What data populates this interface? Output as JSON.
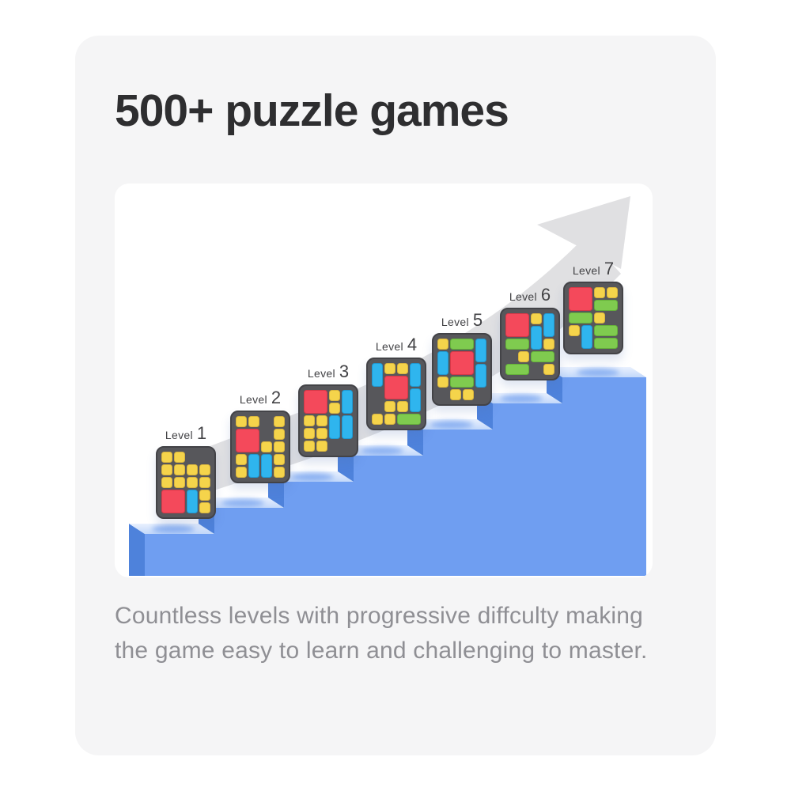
{
  "card": {
    "title": "500+ puzzle games",
    "description": "Countless levels with progressive diffculty making the game easy to learn and challenging to master."
  },
  "illustration": {
    "arrow_icon": "growth-arrow-icon",
    "arrow_color": "#e0e0e2",
    "stairs": {
      "front": "#6f9ef1",
      "side": "#4e82db",
      "top": "#d3e3fb",
      "top_back": "#e9f1fe",
      "top_shadow": "#7aa5ef"
    },
    "board_style": {
      "background": "#57575b",
      "border": "#434347"
    },
    "piece_colors": {
      "Y": {
        "fill": "#f5d44b",
        "edge": "#d9b53e"
      },
      "R": {
        "fill": "#f4495b",
        "edge": "#d63848"
      },
      "B": {
        "fill": "#2fb5ee",
        "edge": "#1f99d3"
      },
      "G": {
        "fill": "#7fcb4f",
        "edge": "#65b13a"
      }
    },
    "levels": [
      {
        "label": "Level",
        "number": "1",
        "pieces": [
          [
            0,
            0,
            1,
            1,
            "Y"
          ],
          [
            0,
            1,
            1,
            1,
            "Y"
          ],
          [
            1,
            0,
            1,
            1,
            "Y"
          ],
          [
            1,
            1,
            1,
            1,
            "Y"
          ],
          [
            1,
            2,
            1,
            1,
            "Y"
          ],
          [
            1,
            3,
            1,
            1,
            "Y"
          ],
          [
            2,
            0,
            1,
            1,
            "Y"
          ],
          [
            2,
            1,
            1,
            1,
            "Y"
          ],
          [
            2,
            2,
            1,
            1,
            "Y"
          ],
          [
            2,
            3,
            1,
            1,
            "Y"
          ],
          [
            3,
            0,
            2,
            2,
            "R"
          ],
          [
            3,
            2,
            2,
            1,
            "B"
          ],
          [
            3,
            3,
            1,
            1,
            "Y"
          ],
          [
            4,
            3,
            1,
            1,
            "Y"
          ]
        ]
      },
      {
        "label": "Level",
        "number": "2",
        "pieces": [
          [
            0,
            0,
            1,
            1,
            "Y"
          ],
          [
            0,
            1,
            1,
            1,
            "Y"
          ],
          [
            0,
            3,
            1,
            1,
            "Y"
          ],
          [
            1,
            0,
            2,
            2,
            "R"
          ],
          [
            1,
            3,
            1,
            1,
            "Y"
          ],
          [
            2,
            2,
            1,
            1,
            "Y"
          ],
          [
            2,
            3,
            1,
            1,
            "Y"
          ],
          [
            3,
            0,
            1,
            1,
            "Y"
          ],
          [
            3,
            1,
            2,
            1,
            "B"
          ],
          [
            3,
            2,
            2,
            1,
            "B"
          ],
          [
            3,
            3,
            1,
            1,
            "Y"
          ],
          [
            4,
            0,
            1,
            1,
            "Y"
          ],
          [
            4,
            3,
            1,
            1,
            "Y"
          ]
        ]
      },
      {
        "label": "Level",
        "number": "3",
        "pieces": [
          [
            0,
            0,
            2,
            2,
            "R"
          ],
          [
            0,
            2,
            1,
            1,
            "Y"
          ],
          [
            0,
            3,
            2,
            1,
            "B"
          ],
          [
            1,
            2,
            1,
            1,
            "Y"
          ],
          [
            2,
            0,
            1,
            1,
            "Y"
          ],
          [
            2,
            1,
            1,
            1,
            "Y"
          ],
          [
            2,
            2,
            2,
            1,
            "B"
          ],
          [
            2,
            3,
            2,
            1,
            "B"
          ],
          [
            3,
            0,
            1,
            1,
            "Y"
          ],
          [
            3,
            1,
            1,
            1,
            "Y"
          ],
          [
            4,
            0,
            1,
            1,
            "Y"
          ],
          [
            4,
            1,
            1,
            1,
            "Y"
          ]
        ]
      },
      {
        "label": "Level",
        "number": "4",
        "pieces": [
          [
            0,
            0,
            2,
            1,
            "B"
          ],
          [
            0,
            1,
            1,
            1,
            "Y"
          ],
          [
            0,
            2,
            1,
            1,
            "Y"
          ],
          [
            0,
            3,
            2,
            1,
            "B"
          ],
          [
            1,
            1,
            2,
            2,
            "R"
          ],
          [
            2,
            3,
            2,
            1,
            "B"
          ],
          [
            3,
            1,
            1,
            1,
            "Y"
          ],
          [
            3,
            2,
            1,
            1,
            "Y"
          ],
          [
            4,
            0,
            1,
            1,
            "Y"
          ],
          [
            4,
            1,
            1,
            1,
            "Y"
          ],
          [
            4,
            2,
            1,
            2,
            "G"
          ]
        ]
      },
      {
        "label": "Level",
        "number": "5",
        "pieces": [
          [
            0,
            0,
            1,
            1,
            "Y"
          ],
          [
            0,
            1,
            1,
            2,
            "G"
          ],
          [
            0,
            3,
            2,
            1,
            "B"
          ],
          [
            1,
            0,
            2,
            1,
            "B"
          ],
          [
            1,
            1,
            2,
            2,
            "R"
          ],
          [
            2,
            3,
            2,
            1,
            "B"
          ],
          [
            3,
            0,
            1,
            1,
            "Y"
          ],
          [
            3,
            1,
            1,
            2,
            "G"
          ],
          [
            4,
            1,
            1,
            1,
            "Y"
          ],
          [
            4,
            2,
            1,
            1,
            "Y"
          ]
        ]
      },
      {
        "label": "Level",
        "number": "6",
        "pieces": [
          [
            0,
            0,
            2,
            2,
            "R"
          ],
          [
            0,
            2,
            1,
            1,
            "Y"
          ],
          [
            0,
            3,
            2,
            1,
            "B"
          ],
          [
            1,
            2,
            2,
            1,
            "B"
          ],
          [
            2,
            0,
            1,
            2,
            "G"
          ],
          [
            2,
            3,
            1,
            1,
            "Y"
          ],
          [
            3,
            1,
            1,
            1,
            "Y"
          ],
          [
            3,
            2,
            1,
            2,
            "G"
          ],
          [
            4,
            0,
            1,
            2,
            "G"
          ],
          [
            4,
            3,
            1,
            1,
            "Y"
          ]
        ]
      },
      {
        "label": "Level",
        "number": "7",
        "pieces": [
          [
            0,
            0,
            2,
            2,
            "R"
          ],
          [
            0,
            2,
            1,
            1,
            "Y"
          ],
          [
            0,
            3,
            1,
            1,
            "Y"
          ],
          [
            1,
            2,
            1,
            2,
            "G"
          ],
          [
            2,
            0,
            1,
            2,
            "G"
          ],
          [
            2,
            2,
            1,
            1,
            "Y"
          ],
          [
            3,
            0,
            1,
            1,
            "Y"
          ],
          [
            3,
            1,
            2,
            1,
            "B"
          ],
          [
            3,
            2,
            1,
            2,
            "G"
          ],
          [
            4,
            2,
            1,
            2,
            "G"
          ]
        ]
      }
    ]
  }
}
